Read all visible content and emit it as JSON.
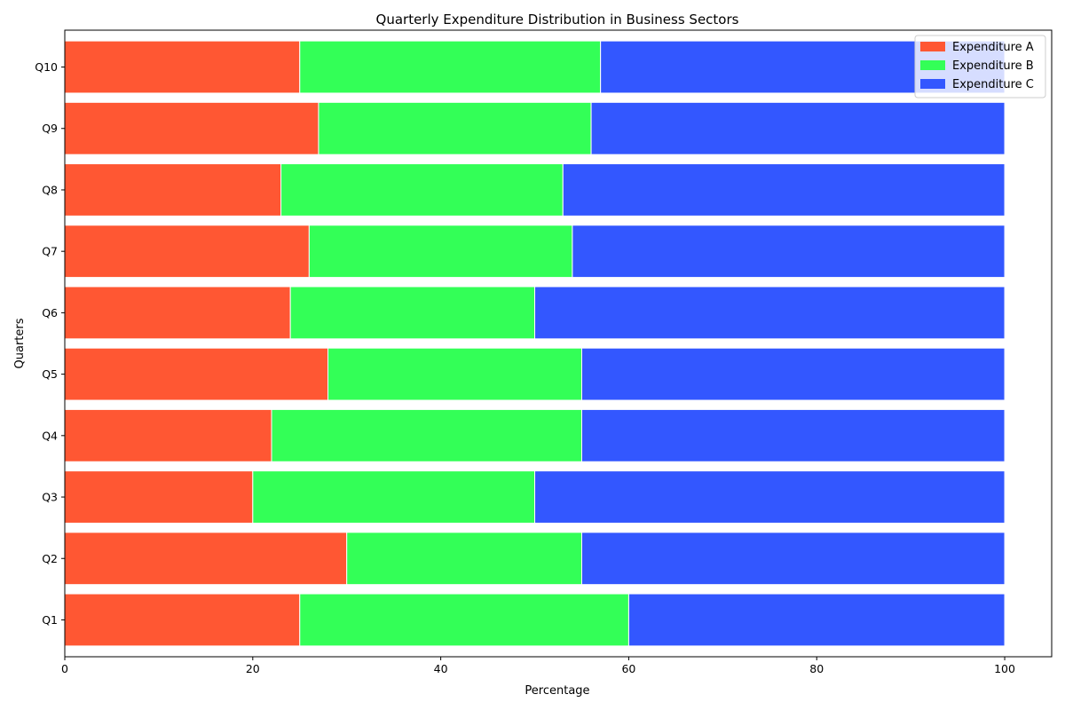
{
  "chart_data": {
    "type": "bar",
    "orientation": "horizontal",
    "stacked": true,
    "title": "Quarterly Expenditure Distribution in Business Sectors",
    "xlabel": "Percentage",
    "ylabel": "Quarters",
    "categories": [
      "Q1",
      "Q2",
      "Q3",
      "Q4",
      "Q5",
      "Q6",
      "Q7",
      "Q8",
      "Q9",
      "Q10"
    ],
    "series": [
      {
        "name": "Expenditure A",
        "color": "#ff5733",
        "values": [
          25,
          30,
          20,
          22,
          28,
          24,
          26,
          23,
          27,
          25
        ]
      },
      {
        "name": "Expenditure B",
        "color": "#33ff57",
        "values": [
          35,
          25,
          30,
          33,
          27,
          26,
          28,
          30,
          29,
          32
        ]
      },
      {
        "name": "Expenditure C",
        "color": "#3357ff",
        "values": [
          40,
          45,
          50,
          45,
          45,
          50,
          46,
          47,
          44,
          43
        ]
      }
    ],
    "xlim": [
      0,
      105
    ],
    "xticks": [
      0,
      20,
      40,
      60,
      80,
      100
    ],
    "legend_position": "top-right",
    "grid": false
  }
}
